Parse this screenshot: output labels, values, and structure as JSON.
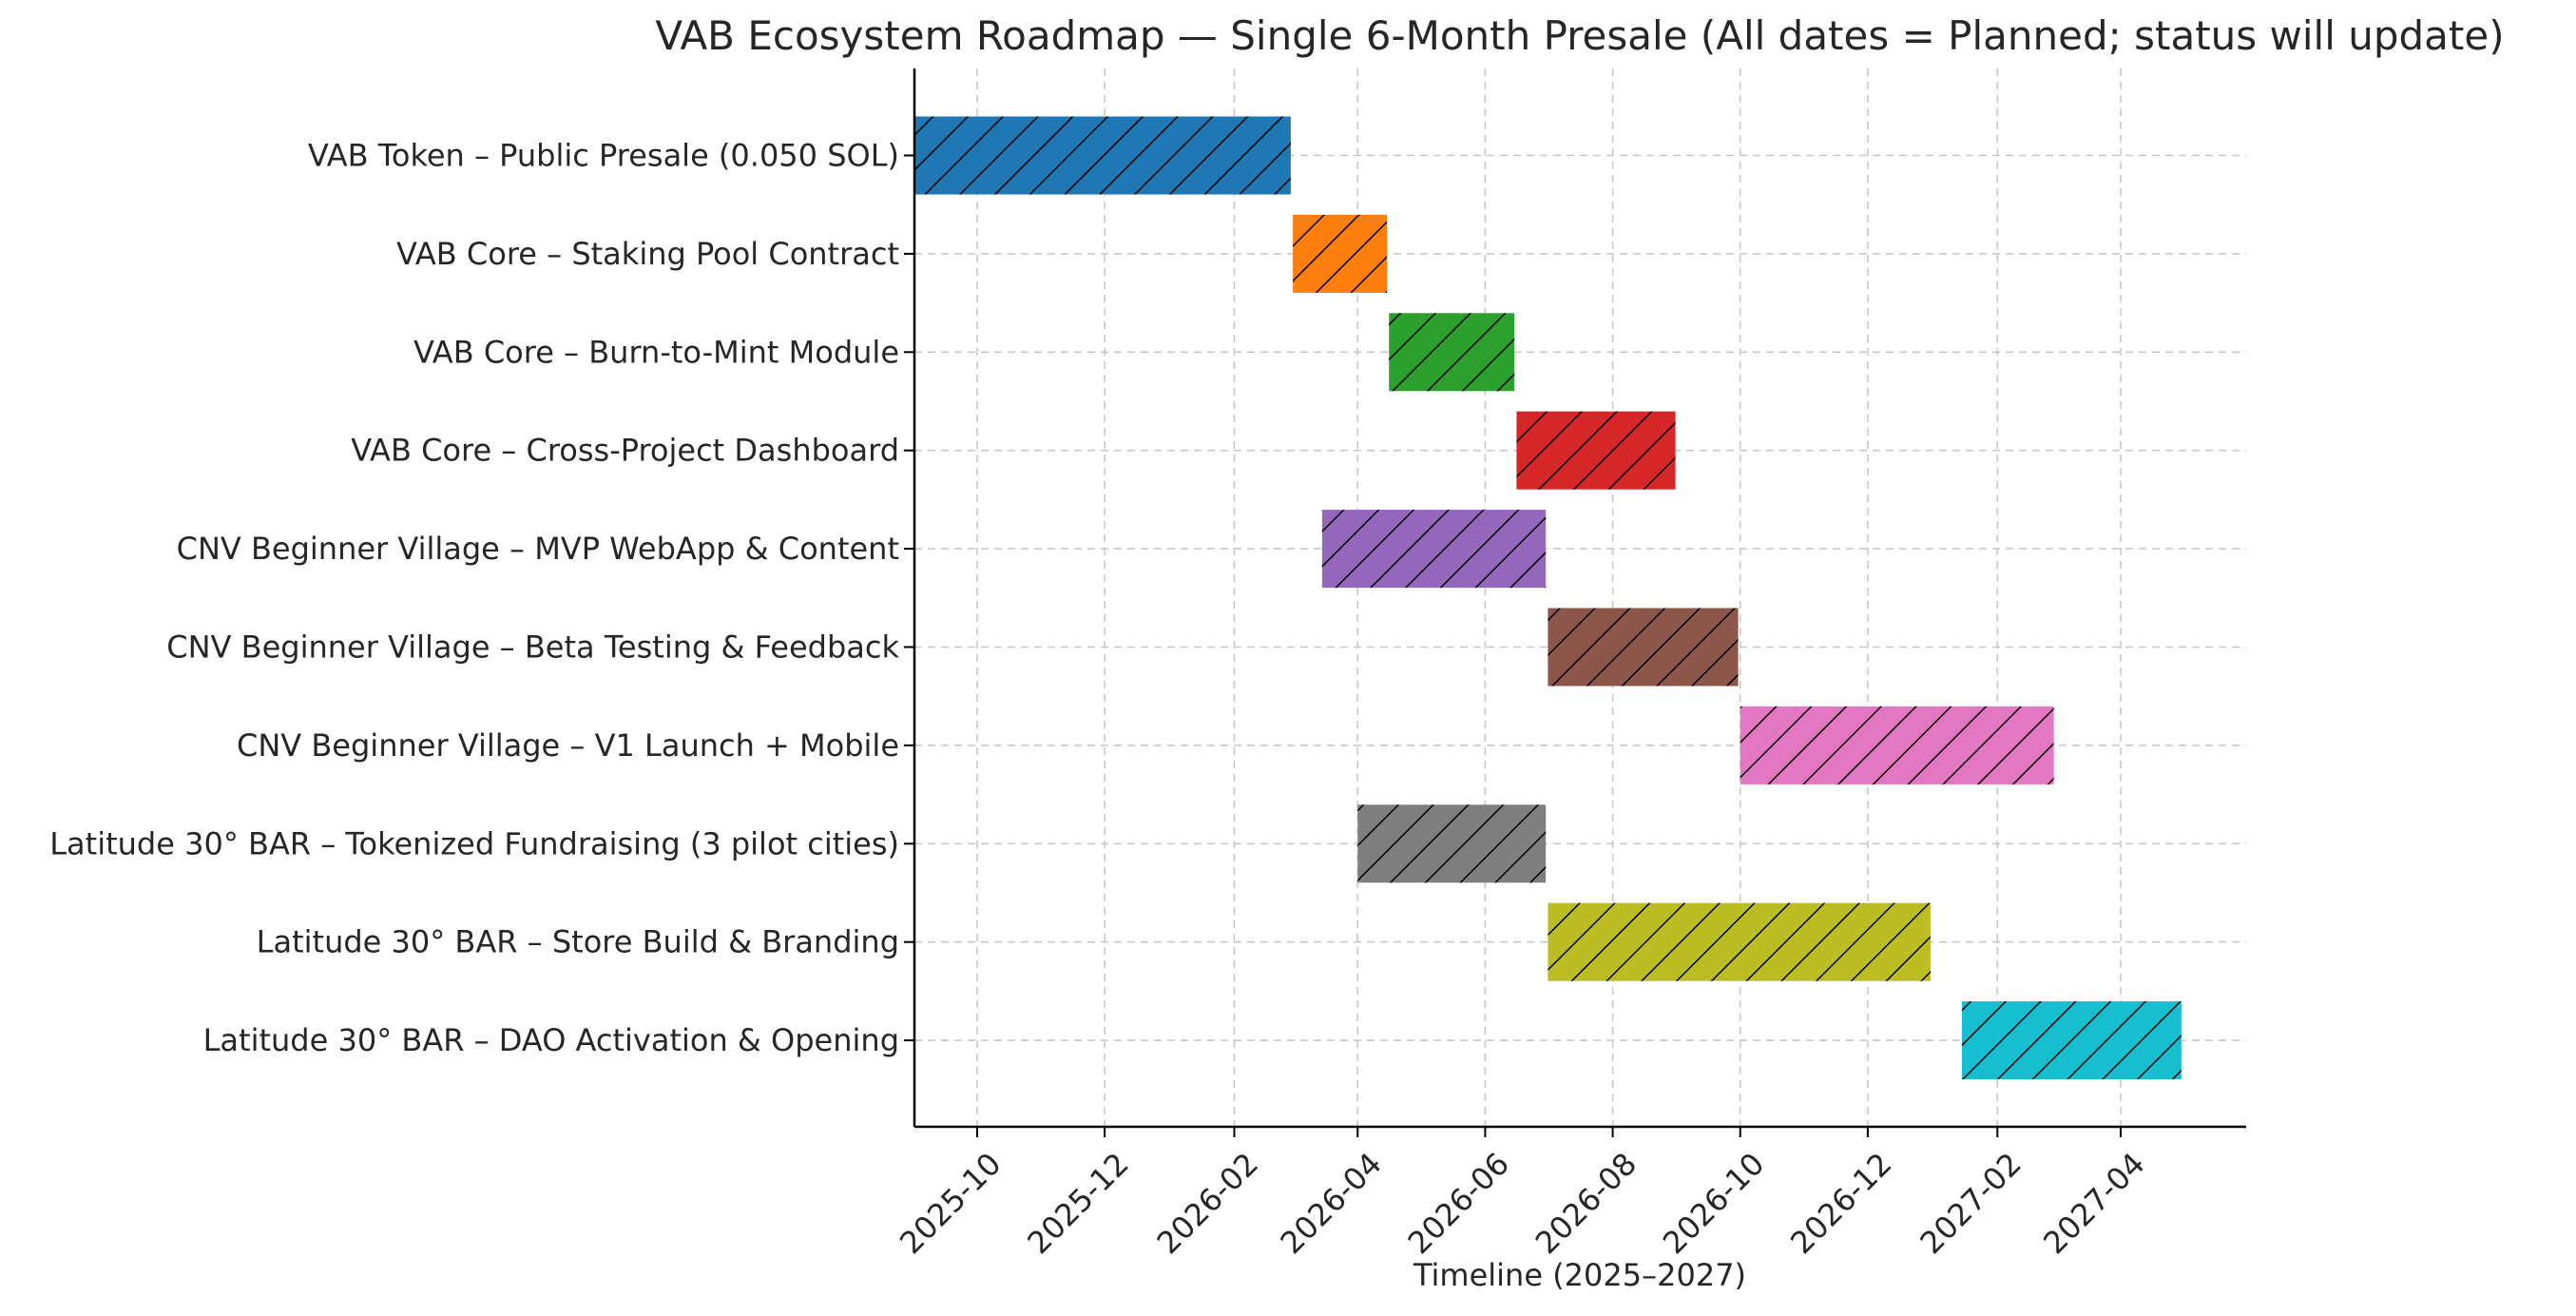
{
  "chart_data": {
    "type": "gantt",
    "title": "VAB Ecosystem Roadmap — Single 6-Month Presale (All dates = Planned; status will update)",
    "xlabel": "Timeline (2025–2027)",
    "ylabel": "",
    "x_scale": "date",
    "xlim": [
      "2025-09-01",
      "2027-05-31"
    ],
    "x_ticks": [
      "2025-10",
      "2025-12",
      "2026-02",
      "2026-04",
      "2026-06",
      "2026-08",
      "2026-10",
      "2026-12",
      "2027-02",
      "2027-04"
    ],
    "grid": true,
    "bar_pattern": "diagonal-hatch",
    "tasks": [
      {
        "label": "VAB Token – Public Presale (0.050 SOL)",
        "start": "2025-09-01",
        "end": "2026-02-28",
        "color": "#1f77b4"
      },
      {
        "label": "VAB Core – Staking Pool Contract",
        "start": "2026-03-01",
        "end": "2026-04-15",
        "color": "#ff7f0e"
      },
      {
        "label": "VAB Core – Burn-to-Mint Module",
        "start": "2026-04-16",
        "end": "2026-06-15",
        "color": "#2ca02c"
      },
      {
        "label": "VAB Core – Cross-Project Dashboard",
        "start": "2026-06-16",
        "end": "2026-08-31",
        "color": "#d62728"
      },
      {
        "label": "CNV Beginner Village – MVP WebApp & Content",
        "start": "2026-03-15",
        "end": "2026-06-30",
        "color": "#9467bd"
      },
      {
        "label": "CNV Beginner Village – Beta Testing & Feedback",
        "start": "2026-07-01",
        "end": "2026-09-30",
        "color": "#8c564b"
      },
      {
        "label": "CNV Beginner Village – V1 Launch + Mobile",
        "start": "2026-10-01",
        "end": "2027-02-28",
        "color": "#e377c2"
      },
      {
        "label": "Latitude 30° BAR – Tokenized Fundraising (3 pilot cities)",
        "start": "2026-04-01",
        "end": "2026-06-30",
        "color": "#7f7f7f"
      },
      {
        "label": "Latitude 30° BAR – Store Build & Branding",
        "start": "2026-07-01",
        "end": "2026-12-31",
        "color": "#bcbd22"
      },
      {
        "label": "Latitude 30° BAR – DAO Activation & Opening",
        "start": "2027-01-15",
        "end": "2027-04-30",
        "color": "#17becf"
      }
    ]
  }
}
